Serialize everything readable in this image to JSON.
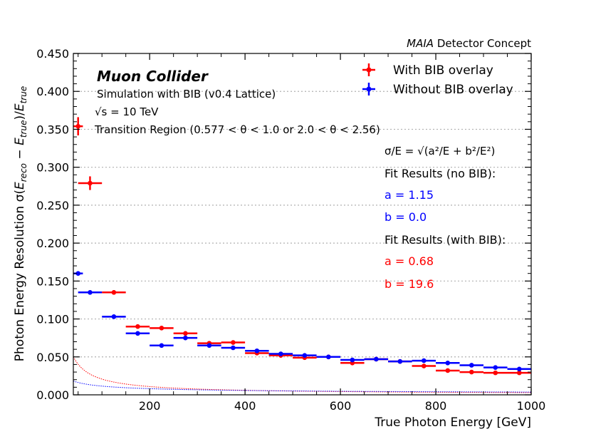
{
  "chart_data": {
    "type": "scatter",
    "top_label": {
      "italic": "MAIA",
      "rest": " Detector Concept"
    },
    "xlabel": "True Photon Energy [GeV]",
    "ylabel": "Photon Energy Resolution σ(E_reco − E_true)/E_true",
    "ylabel_parts": {
      "prefix": "Photon Energy Resolution σ(",
      "e1": "E",
      "s1": "reco",
      "mid": " − ",
      "e2": "E",
      "s2": "true",
      "slash": ")/",
      "e3": "E",
      "s3": "true"
    },
    "xlim": [
      40,
      1000
    ],
    "ylim": [
      0,
      0.45
    ],
    "xticks": [
      200,
      400,
      600,
      800,
      1000
    ],
    "xtick_labels": [
      "200",
      "400",
      "600",
      "800",
      "1000"
    ],
    "yticks": [
      0,
      0.05,
      0.1,
      0.15,
      0.2,
      0.25,
      0.3,
      0.35,
      0.4,
      0.45
    ],
    "ytick_labels": [
      "0.000",
      "0.050",
      "0.100",
      "0.150",
      "0.200",
      "0.250",
      "0.300",
      "0.350",
      "0.400",
      "0.450"
    ],
    "annotations": {
      "title": "Muon Collider",
      "subtitle": "Simulation with BIB (v0.4 Lattice)",
      "energy": "√s = 10 TeV",
      "region": "Transition Region (0.577 < θ < 1.0 or 2.0 < θ < 2.56)",
      "formula": "σ/E = √(a²/E + b²/E²)",
      "fit_nobib_header": "Fit Results (no BIB):",
      "fit_nobib_a": "a = 1.15",
      "fit_nobib_b": "b = 0.0",
      "fit_bib_header": "Fit Results (with BIB):",
      "fit_bib_a": "a = 0.68",
      "fit_bib_b": "b = 19.6"
    },
    "legend": [
      "With BIB overlay",
      "Without BIB overlay"
    ],
    "legend_position": "top-right",
    "colors": {
      "with_bib": "#ff0000",
      "without_bib": "#0000ff",
      "grid": "#b0b0b0"
    },
    "series": [
      {
        "name": "With BIB overlay",
        "points": [
          {
            "x": 50,
            "xerr": 10,
            "y": 0.354,
            "yerr": 0.012
          },
          {
            "x": 75,
            "xerr": 25,
            "y": 0.279,
            "yerr": 0.009
          },
          {
            "x": 125,
            "xerr": 25,
            "y": 0.135,
            "yerr": 0.003
          },
          {
            "x": 175,
            "xerr": 25,
            "y": 0.09,
            "yerr": 0.002
          },
          {
            "x": 225,
            "xerr": 25,
            "y": 0.088,
            "yerr": 0.002
          },
          {
            "x": 275,
            "xerr": 25,
            "y": 0.081,
            "yerr": 0.002
          },
          {
            "x": 325,
            "xerr": 25,
            "y": 0.068,
            "yerr": 0.002
          },
          {
            "x": 375,
            "xerr": 25,
            "y": 0.069,
            "yerr": 0.002
          },
          {
            "x": 425,
            "xerr": 25,
            "y": 0.055,
            "yerr": 0.002
          },
          {
            "x": 475,
            "xerr": 25,
            "y": 0.052,
            "yerr": 0.002
          },
          {
            "x": 525,
            "xerr": 25,
            "y": 0.049,
            "yerr": 0.002
          },
          {
            "x": 575,
            "xerr": 25,
            "y": 0.05,
            "yerr": 0.002
          },
          {
            "x": 625,
            "xerr": 25,
            "y": 0.042,
            "yerr": 0.002
          },
          {
            "x": 675,
            "xerr": 25,
            "y": 0.047,
            "yerr": 0.002
          },
          {
            "x": 725,
            "xerr": 25,
            "y": 0.044,
            "yerr": 0.002
          },
          {
            "x": 775,
            "xerr": 25,
            "y": 0.038,
            "yerr": 0.002
          },
          {
            "x": 825,
            "xerr": 25,
            "y": 0.032,
            "yerr": 0.002
          },
          {
            "x": 875,
            "xerr": 25,
            "y": 0.03,
            "yerr": 0.002
          },
          {
            "x": 925,
            "xerr": 25,
            "y": 0.029,
            "yerr": 0.002
          },
          {
            "x": 975,
            "xerr": 25,
            "y": 0.029,
            "yerr": 0.002
          }
        ],
        "fit": {
          "a": 0.68,
          "b": 19.6
        }
      },
      {
        "name": "Without BIB overlay",
        "points": [
          {
            "x": 50,
            "xerr": 10,
            "y": 0.16,
            "yerr": 0.002
          },
          {
            "x": 75,
            "xerr": 25,
            "y": 0.135,
            "yerr": 0.002
          },
          {
            "x": 125,
            "xerr": 25,
            "y": 0.103,
            "yerr": 0.002
          },
          {
            "x": 175,
            "xerr": 25,
            "y": 0.081,
            "yerr": 0.002
          },
          {
            "x": 225,
            "xerr": 25,
            "y": 0.065,
            "yerr": 0.002
          },
          {
            "x": 275,
            "xerr": 25,
            "y": 0.075,
            "yerr": 0.002
          },
          {
            "x": 325,
            "xerr": 25,
            "y": 0.065,
            "yerr": 0.002
          },
          {
            "x": 375,
            "xerr": 25,
            "y": 0.062,
            "yerr": 0.002
          },
          {
            "x": 425,
            "xerr": 25,
            "y": 0.058,
            "yerr": 0.002
          },
          {
            "x": 475,
            "xerr": 25,
            "y": 0.054,
            "yerr": 0.002
          },
          {
            "x": 525,
            "xerr": 25,
            "y": 0.052,
            "yerr": 0.002
          },
          {
            "x": 575,
            "xerr": 25,
            "y": 0.05,
            "yerr": 0.002
          },
          {
            "x": 625,
            "xerr": 25,
            "y": 0.046,
            "yerr": 0.002
          },
          {
            "x": 675,
            "xerr": 25,
            "y": 0.047,
            "yerr": 0.002
          },
          {
            "x": 725,
            "xerr": 25,
            "y": 0.044,
            "yerr": 0.002
          },
          {
            "x": 775,
            "xerr": 25,
            "y": 0.045,
            "yerr": 0.002
          },
          {
            "x": 825,
            "xerr": 25,
            "y": 0.042,
            "yerr": 0.002
          },
          {
            "x": 875,
            "xerr": 25,
            "y": 0.039,
            "yerr": 0.002
          },
          {
            "x": 925,
            "xerr": 25,
            "y": 0.036,
            "yerr": 0.002
          },
          {
            "x": 975,
            "xerr": 25,
            "y": 0.034,
            "yerr": 0.002
          }
        ],
        "fit": {
          "a": 1.15,
          "b": 0.0
        }
      }
    ]
  }
}
